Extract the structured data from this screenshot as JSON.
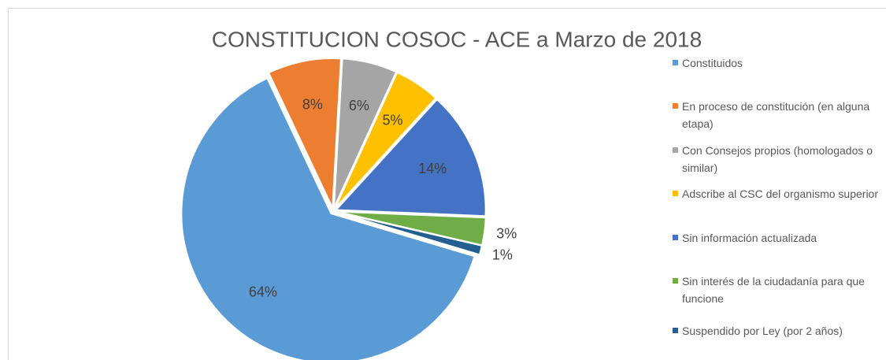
{
  "chart_data": {
    "type": "pie",
    "title": "CONSTITUCION COSOC - ACE a Marzo de 2018",
    "categories": [
      "Constituidos",
      "En proceso de constitución (en alguna etapa)",
      "Con Consejos propios (homologados o similar)",
      "Adscribe al CSC del organismo superior",
      "Sin información actualizada",
      "Sin interés de la ciudadanía para que funcione",
      "Suspendido por Ley (por 2 años)"
    ],
    "values": [
      64,
      8,
      6,
      5,
      14,
      3,
      1
    ],
    "value_labels": [
      "64%",
      "8%",
      "6%",
      "5%",
      "14%",
      "3%",
      "1%"
    ],
    "colors": [
      "#5b9bd5",
      "#ed7d31",
      "#a5a5a5",
      "#ffc000",
      "#4472c4",
      "#70ad47",
      "#255e91"
    ],
    "legend": "right"
  }
}
